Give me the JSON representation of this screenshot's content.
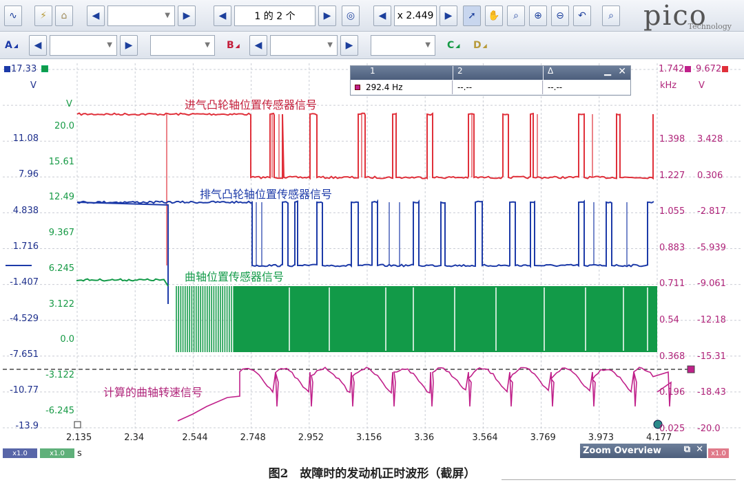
{
  "toolbar": {
    "page_indicator": "1 的 2 个",
    "zoom_value": "x 2.449",
    "logo_text": "pico",
    "logo_sub": "Technology"
  },
  "channels": {
    "a": "A",
    "b": "B",
    "c": "C",
    "d": "D"
  },
  "axis": {
    "left1_top": "17.33",
    "left1_unit": "V",
    "left1_ticks": [
      "11.08",
      "7.96",
      "4.838",
      "1.716",
      "-1.407",
      "-4.529",
      "-7.651",
      "-10.77",
      "-13.9"
    ],
    "left2_unit": "V",
    "left2_ticks": [
      "20.0",
      "15.61",
      "12.49",
      "9.367",
      "6.245",
      "3.122",
      "0.0",
      "-3.122",
      "-6.245"
    ],
    "right1_top": "1.742",
    "right1_unit": "kHz",
    "right1_ticks": [
      "1.398",
      "1.227",
      "1.055",
      "0.883",
      "0.711",
      "0.54",
      "0.368",
      "0.196",
      "0.025"
    ],
    "right2_top": "9.672",
    "right2_unit": "V",
    "right2_ticks": [
      "3.428",
      "0.306",
      "-2.817",
      "-5.939",
      "-9.061",
      "-12.18",
      "-15.31",
      "-18.43",
      "-20.0"
    ],
    "x_ticks": [
      "2.135",
      "2.34",
      "2.544",
      "2.748",
      "2.952",
      "3.156",
      "3.36",
      "3.564",
      "3.769",
      "3.973",
      "4.177"
    ],
    "x_unit": "s",
    "x_badge1": "x1.0",
    "x_badge2": "x1.0",
    "x_badge3": "x1.0"
  },
  "signals": {
    "intake": "进气凸轮轴位置传感器信号",
    "exhaust": "排气凸轮轴位置传感器信号",
    "crank": "曲轴位置传感器信号",
    "rpm": "计算的曲轴转速信号"
  },
  "measurements": {
    "col1": "1",
    "col2": "2",
    "col3": "Δ",
    "value1": "292.4 Hz",
    "value2": "--.--",
    "value3": "--.--"
  },
  "zoom_overview": {
    "title": "Zoom Overview"
  },
  "caption": "图2　故障时的发动机正时波形（截屏）",
  "colors": {
    "intake": "#e0303a",
    "exhaust": "#1c3aa8",
    "crank": "#129a48",
    "rpm": "#c0208a"
  }
}
